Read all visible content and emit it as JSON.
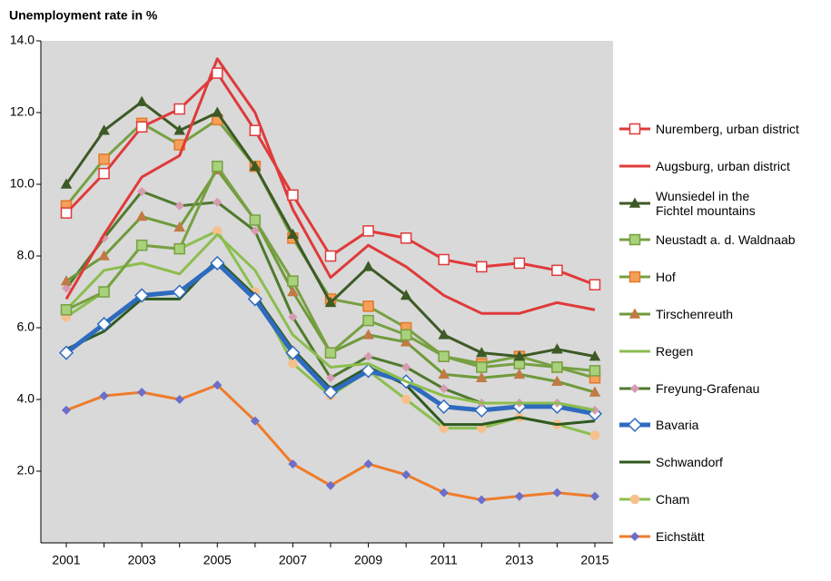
{
  "chart_data": {
    "type": "line",
    "title": "Unemployment rate in %",
    "categories": [
      "2001",
      null,
      "2003",
      null,
      "2005",
      null,
      "2007",
      null,
      "2009",
      null,
      "2011",
      null,
      "2013",
      null,
      "2015"
    ],
    "ylim": [
      0,
      14
    ],
    "yticks": [
      {
        "value": 2,
        "label": "2.0"
      },
      {
        "value": 4,
        "label": "4.0"
      },
      {
        "value": 6,
        "label": "6.0"
      },
      {
        "value": 8,
        "label": "8.0"
      },
      {
        "value": 10,
        "label": "10.0"
      },
      {
        "value": 12,
        "label": "12.0"
      },
      {
        "value": 14,
        "label": "14.0"
      }
    ],
    "grid": false,
    "background": "#d9d9d9",
    "legend": "right",
    "series": [
      {
        "name": "Nuremberg, urban district",
        "color": "#e03a3a",
        "line_width": 3,
        "marker": "square",
        "marker_fill": "#ffffff",
        "marker_stroke": "#e03a3a",
        "values": [
          9.2,
          10.3,
          11.6,
          12.1,
          13.1,
          11.5,
          9.7,
          8.0,
          8.7,
          8.5,
          7.9,
          7.7,
          7.8,
          7.6,
          7.2
        ]
      },
      {
        "name": "Augsburg, urban district",
        "color": "#e03a3a",
        "line_width": 3,
        "marker": "none",
        "values": [
          6.8,
          8.6,
          10.2,
          10.8,
          13.5,
          12.0,
          9.3,
          7.4,
          8.3,
          7.7,
          6.9,
          6.4,
          6.4,
          6.7,
          6.5
        ]
      },
      {
        "name": "Wunsiedel in the\nFichtel mountains",
        "color": "#3d5a26",
        "line_width": 3,
        "marker": "triangle",
        "marker_fill": "#3d5a26",
        "marker_stroke": "#3d5a26",
        "values": [
          10.0,
          11.5,
          12.3,
          11.5,
          12.0,
          10.5,
          8.6,
          6.7,
          7.7,
          6.9,
          5.8,
          5.3,
          5.2,
          5.4,
          5.2
        ]
      },
      {
        "name": "Neustadt a. d. Waldnaab",
        "color": "#77a043",
        "line_width": 3,
        "marker": "square",
        "marker_fill": "#a9d07a",
        "marker_stroke": "#77a043",
        "values": [
          6.5,
          7.0,
          8.3,
          8.2,
          10.5,
          9.0,
          7.3,
          5.3,
          6.2,
          5.8,
          5.2,
          4.9,
          5.0,
          4.9,
          4.8
        ]
      },
      {
        "name": "Hof",
        "color": "#77a043",
        "line_width": 3,
        "marker": "square",
        "marker_fill": "#f5a05a",
        "marker_stroke": "#e07a2a",
        "values": [
          9.4,
          10.7,
          11.7,
          11.1,
          11.8,
          10.5,
          8.5,
          6.8,
          6.6,
          6.0,
          5.2,
          5.0,
          5.2,
          4.9,
          4.6
        ]
      },
      {
        "name": "Tirschenreuth",
        "color": "#6f9a3a",
        "line_width": 3,
        "marker": "triangle",
        "marker_fill": "#c07a45",
        "marker_stroke": "#c07a45",
        "values": [
          7.3,
          8.0,
          9.1,
          8.8,
          10.4,
          9.0,
          7.0,
          5.3,
          5.8,
          5.6,
          4.7,
          4.6,
          4.7,
          4.5,
          4.2
        ]
      },
      {
        "name": "Regen",
        "color": "#8cbd4e",
        "line_width": 3,
        "marker": "none",
        "values": [
          6.5,
          7.6,
          7.8,
          7.5,
          8.6,
          7.6,
          5.8,
          4.9,
          5.0,
          4.5,
          4.1,
          3.9,
          3.9,
          3.9,
          3.7
        ]
      },
      {
        "name": "Freyung-Grafenau",
        "color": "#4f7a2e",
        "line_width": 3,
        "marker": "diamond",
        "marker_fill": "#d69bb0",
        "marker_stroke": "#d69bb0",
        "values": [
          7.1,
          8.5,
          9.8,
          9.4,
          9.5,
          8.7,
          6.3,
          4.6,
          5.2,
          4.9,
          4.3,
          3.9,
          3.9,
          3.9,
          3.7
        ]
      },
      {
        "name": "Bavaria",
        "color": "#2e6bbf",
        "line_width": 5,
        "marker": "diamond-big",
        "marker_fill": "#ffffff",
        "marker_stroke": "#2e6bbf",
        "values": [
          5.3,
          6.1,
          6.9,
          7.0,
          7.8,
          6.8,
          5.3,
          4.2,
          4.8,
          4.5,
          3.8,
          3.7,
          3.8,
          3.8,
          3.6
        ]
      },
      {
        "name": "Schwandorf",
        "color": "#2f5a1f",
        "line_width": 3,
        "marker": "none",
        "values": [
          5.4,
          5.9,
          6.8,
          6.8,
          7.9,
          6.9,
          5.4,
          4.3,
          4.9,
          4.4,
          3.3,
          3.3,
          3.5,
          3.3,
          3.4
        ]
      },
      {
        "name": "Cham",
        "color": "#8bbf50",
        "line_width": 3,
        "marker": "circle",
        "marker_fill": "#f6c08d",
        "marker_stroke": "#f6c08d",
        "values": [
          6.3,
          7.0,
          8.3,
          8.2,
          8.7,
          7.0,
          5.0,
          4.1,
          4.8,
          4.0,
          3.2,
          3.2,
          3.5,
          3.3,
          3.0
        ]
      },
      {
        "name": "Eichstätt",
        "color": "#ef7c2a",
        "line_width": 3,
        "marker": "diamond",
        "marker_fill": "#6b6fc9",
        "marker_stroke": "#6b6fc9",
        "values": [
          3.7,
          4.1,
          4.2,
          4.0,
          4.4,
          3.4,
          2.2,
          1.6,
          2.2,
          1.9,
          1.4,
          1.2,
          1.3,
          1.4,
          1.3
        ]
      }
    ]
  }
}
